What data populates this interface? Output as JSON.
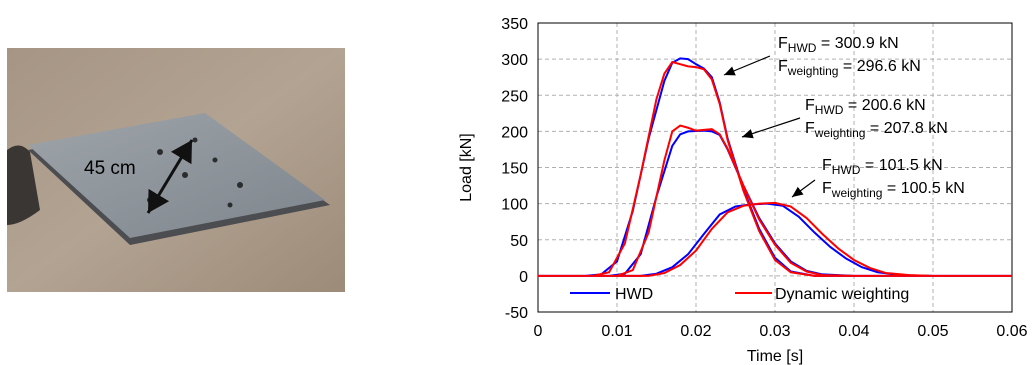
{
  "photo": {
    "label": "45 cm"
  },
  "chart_data": {
    "type": "line",
    "x_label": "Time [s]",
    "y_label": "Load [kN]",
    "xlim": [
      0,
      0.06
    ],
    "xticks": [
      0,
      0.01,
      0.02,
      0.03,
      0.04,
      0.05,
      0.06
    ],
    "ylim": [
      -50,
      350
    ],
    "yticks": [
      -50,
      0,
      50,
      100,
      150,
      200,
      250,
      300,
      350
    ],
    "grid": true,
    "legend": "bottom",
    "series": [
      {
        "name": "HWD",
        "color": "#0000ff",
        "x": [
          0,
          0.006,
          0.008,
          0.01,
          0.012,
          0.014,
          0.016,
          0.017,
          0.018,
          0.019,
          0.02,
          0.021,
          0.022,
          0.023,
          0.024,
          0.026,
          0.028,
          0.03,
          0.032,
          0.035,
          0.06,
          null,
          0,
          0.009,
          0.011,
          0.013,
          0.015,
          0.017,
          0.018,
          0.019,
          0.021,
          0.022,
          0.023,
          0.024,
          0.026,
          0.028,
          0.03,
          0.032,
          0.034,
          0.036,
          0.04,
          0.06,
          null,
          0,
          0.013,
          0.015,
          0.017,
          0.019,
          0.021,
          0.023,
          0.025,
          0.027,
          0.029,
          0.031,
          0.033,
          0.035,
          0.037,
          0.039,
          0.041,
          0.043,
          0.046,
          0.05,
          0.06
        ],
        "values": [
          0,
          0,
          2,
          20,
          90,
          190,
          270,
          295,
          301,
          300,
          293,
          287,
          275,
          240,
          190,
          120,
          65,
          25,
          6,
          0,
          0,
          null,
          0,
          0,
          3,
          30,
          110,
          180,
          196,
          200,
          201,
          200,
          195,
          175,
          125,
          80,
          45,
          20,
          7,
          2,
          0,
          0,
          null,
          0,
          0,
          3,
          12,
          30,
          58,
          85,
          96,
          99,
          100,
          97,
          82,
          60,
          40,
          24,
          12,
          5,
          1,
          0,
          0
        ]
      },
      {
        "name": "Dynamic weighting",
        "color": "#ff0000",
        "x": [
          0,
          0.007,
          0.009,
          0.011,
          0.013,
          0.015,
          0.016,
          0.017,
          0.018,
          0.019,
          0.02,
          0.021,
          0.022,
          0.023,
          0.024,
          0.026,
          0.028,
          0.03,
          0.032,
          0.035,
          0.06,
          null,
          0,
          0.01,
          0.012,
          0.014,
          0.016,
          0.017,
          0.018,
          0.019,
          0.02,
          0.021,
          0.022,
          0.023,
          0.024,
          0.026,
          0.028,
          0.03,
          0.032,
          0.034,
          0.036,
          0.04,
          0.06,
          null,
          0,
          0.014,
          0.016,
          0.018,
          0.02,
          0.022,
          0.024,
          0.026,
          0.028,
          0.03,
          0.032,
          0.034,
          0.036,
          0.038,
          0.04,
          0.042,
          0.044,
          0.047,
          0.05,
          0.06
        ],
        "values": [
          0,
          0,
          5,
          45,
          140,
          245,
          280,
          296,
          293,
          290,
          289,
          286,
          272,
          238,
          188,
          118,
          62,
          22,
          5,
          0,
          0,
          null,
          0,
          0,
          8,
          60,
          160,
          200,
          208,
          205,
          201,
          202,
          203,
          196,
          176,
          125,
          78,
          43,
          18,
          6,
          1,
          0,
          0,
          null,
          0,
          0,
          4,
          15,
          35,
          65,
          88,
          97,
          100,
          101,
          96,
          80,
          58,
          38,
          22,
          11,
          4,
          1,
          0,
          0
        ]
      }
    ],
    "annotations": [
      {
        "lines": [
          [
            "F",
            "HWD",
            " = 300.9 kN"
          ],
          [
            "F",
            "weighting",
            " = 296.6 kN"
          ]
        ]
      },
      {
        "lines": [
          [
            "F",
            "HWD",
            " = 200.6 kN"
          ],
          [
            "F",
            "weighting",
            " = 207.8 kN"
          ]
        ]
      },
      {
        "lines": [
          [
            "F",
            "HWD",
            " = 101.5 kN"
          ],
          [
            "F",
            "weighting",
            " = 100.5 kN"
          ]
        ]
      }
    ]
  }
}
